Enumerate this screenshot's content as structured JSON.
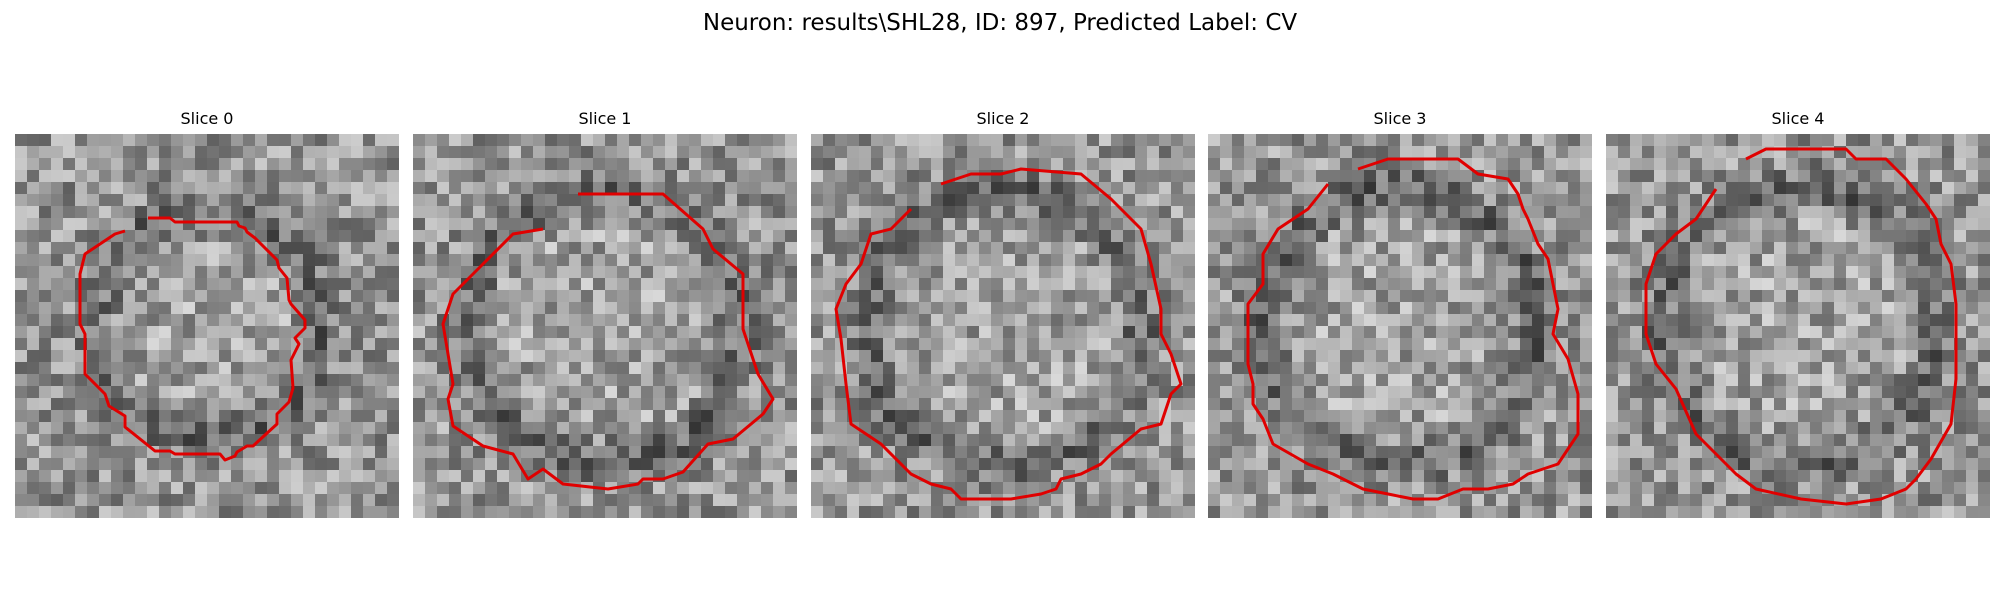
{
  "figure": {
    "title": "Neuron: results\\SHL28, ID: 897, Predicted Label: CV"
  },
  "panels": [
    {
      "title": "Slice 0"
    },
    {
      "title": "Slice 1"
    },
    {
      "title": "Slice 2"
    },
    {
      "title": "Slice 3"
    },
    {
      "title": "Slice 4"
    }
  ],
  "colors": {
    "contour": "#e00000",
    "background": "#ffffff"
  }
}
